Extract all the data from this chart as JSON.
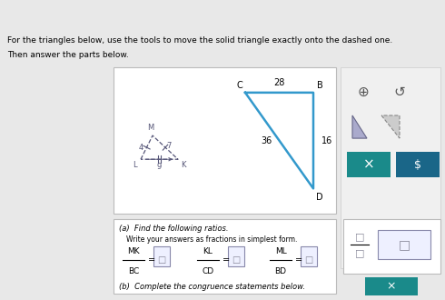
{
  "header_color": "#4a9e4a",
  "bg_color": "#e8e8e8",
  "panel_bg": "#f5f5f5",
  "title_line1": "For the triangles below, use the tools to move the solid triangle exactly onto the dashed one.",
  "title_line2": "Then answer the parts below.",
  "small_tri": {
    "L": [
      0.0,
      0.0
    ],
    "M": [
      0.7,
      0.9
    ],
    "K": [
      1.8,
      0.0
    ],
    "LM": "4",
    "MK": "7",
    "LK": "9",
    "color": "#555577"
  },
  "large_tri": {
    "C": [
      0.0,
      1.6
    ],
    "B": [
      2.8,
      1.6
    ],
    "D": [
      2.2,
      0.0
    ],
    "CB": "28",
    "BD": "16",
    "CD": "36",
    "color": "#3399cc"
  },
  "part_a_header": "(a)  Find the following ratios.",
  "part_a_sub": "Write your answers as fractions in simplest form.",
  "ratios": [
    {
      "num": "MK",
      "den": "BC"
    },
    {
      "num": "KL",
      "den": "CD"
    },
    {
      "num": "ML",
      "den": "BD"
    }
  ],
  "part_b_header": "(b)  Complete the congruence statements below.",
  "toolbar_icons": true
}
